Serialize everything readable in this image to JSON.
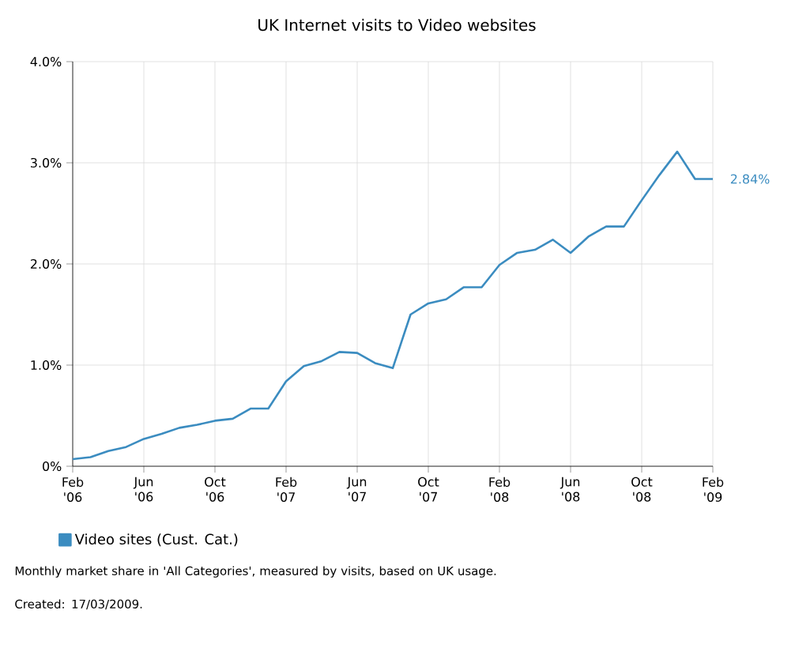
{
  "chart_data": {
    "type": "line",
    "title": "UK Internet visits to Video websites",
    "x": [
      "2006-02",
      "2006-03",
      "2006-04",
      "2006-05",
      "2006-06",
      "2006-07",
      "2006-08",
      "2006-09",
      "2006-10",
      "2006-11",
      "2006-12",
      "2007-01",
      "2007-02",
      "2007-03",
      "2007-04",
      "2007-05",
      "2007-06",
      "2007-07",
      "2007-08",
      "2007-09",
      "2007-10",
      "2007-11",
      "2007-12",
      "2008-01",
      "2008-02",
      "2008-03",
      "2008-04",
      "2008-05",
      "2008-06",
      "2008-07",
      "2008-08",
      "2008-09",
      "2008-10",
      "2008-11",
      "2008-12",
      "2009-01",
      "2009-02"
    ],
    "series": [
      {
        "name": "Video sites (Cust. Cat.)",
        "color": "#3b8cc0",
        "values": [
          0.07,
          0.09,
          0.15,
          0.19,
          0.27,
          0.32,
          0.38,
          0.41,
          0.45,
          0.47,
          0.57,
          0.57,
          0.84,
          0.99,
          1.04,
          1.13,
          1.12,
          1.02,
          0.97,
          1.5,
          1.61,
          1.65,
          1.77,
          1.77,
          1.99,
          2.11,
          2.14,
          2.24,
          2.11,
          2.27,
          2.37,
          2.37,
          2.63,
          2.88,
          3.11,
          2.84,
          2.84
        ],
        "value_labels": [
          null,
          null,
          null,
          null,
          null,
          null,
          null,
          null,
          null,
          null,
          null,
          null,
          null,
          null,
          null,
          null,
          null,
          null,
          null,
          null,
          null,
          null,
          null,
          null,
          null,
          null,
          null,
          null,
          null,
          null,
          null,
          null,
          null,
          null,
          null,
          null,
          "2.84%"
        ]
      }
    ],
    "xlim": [
      "2006-02",
      "2009-02"
    ],
    "xticks": [
      {
        "value": "2006-02",
        "label": "Feb '06"
      },
      {
        "value": "2006-06",
        "label": "Jun '06"
      },
      {
        "value": "2006-10",
        "label": "Oct '06"
      },
      {
        "value": "2007-02",
        "label": "Feb '07"
      },
      {
        "value": "2007-06",
        "label": "Jun '07"
      },
      {
        "value": "2007-10",
        "label": "Oct '07"
      },
      {
        "value": "2008-02",
        "label": "Feb '08"
      },
      {
        "value": "2008-06",
        "label": "Jun '08"
      },
      {
        "value": "2008-10",
        "label": "Oct '08"
      },
      {
        "value": "2009-02",
        "label": "Feb '09"
      }
    ],
    "ylim": [
      0,
      4
    ],
    "yticks": [
      {
        "value": 0,
        "label": "0%"
      },
      {
        "value": 1,
        "label": "1.0%"
      },
      {
        "value": 2,
        "label": "2.0%"
      },
      {
        "value": 3,
        "label": "3.0%"
      },
      {
        "value": 4,
        "label": "4.0%"
      }
    ],
    "grid": true,
    "legend": "bottom",
    "marker": "none",
    "line_style": "solid",
    "annotations": [
      "Monthly market share in 'All Categories', measured by visits, based on UK usage.",
      "Created: 17/03/2009."
    ]
  }
}
